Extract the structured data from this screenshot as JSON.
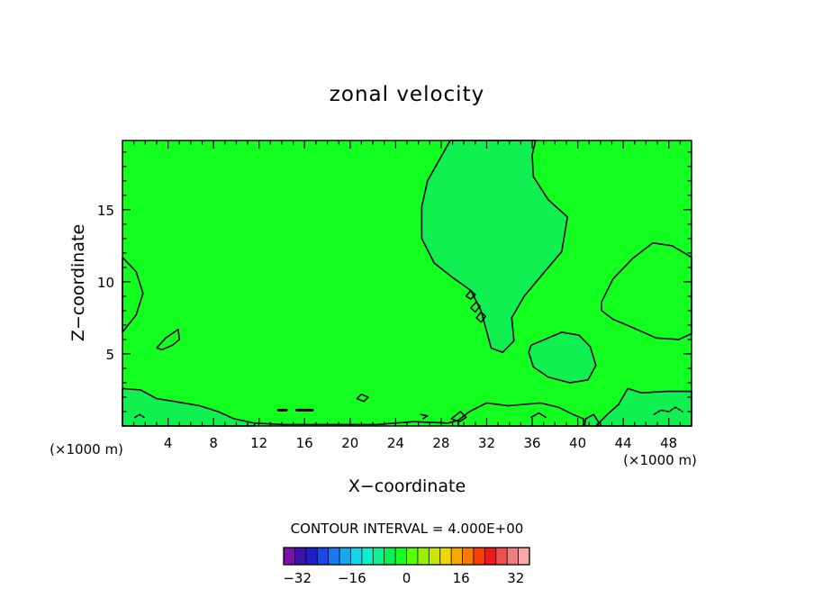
{
  "chart_data": {
    "type": "heatmap",
    "title": "zonal velocity",
    "xlabel": "X−coordinate",
    "ylabel": "Z−coordinate",
    "x_unit_label": "(×1000 m)",
    "x_unit_label_right": "(×1000 m)",
    "xlim": [
      0,
      50
    ],
    "ylim": [
      0,
      19.8
    ],
    "x_ticks": [
      4,
      8,
      12,
      16,
      20,
      24,
      28,
      32,
      36,
      40,
      44,
      48
    ],
    "x_tick_labels": [
      "4",
      "8",
      "12",
      "16",
      "20",
      "24",
      "28",
      "32",
      "36",
      "40",
      "44",
      "48"
    ],
    "y_ticks": [
      5,
      10,
      15
    ],
    "y_tick_labels": [
      "5",
      "10",
      "15"
    ],
    "contour_interval_text": "CONTOUR INTERVAL = 4.000E+00",
    "background_value": 0,
    "colorbar": {
      "min": -36,
      "max": 36,
      "step": 4,
      "tick_values": [
        -32,
        -16,
        0,
        16,
        32
      ],
      "tick_labels": [
        "−32",
        "−16",
        "0",
        "16",
        "32"
      ],
      "colors": [
        "#7a10a8",
        "#4012b0",
        "#2020c8",
        "#1a48e8",
        "#1a78f0",
        "#18a8f0",
        "#18d4e8",
        "#10f0c8",
        "#10f090",
        "#10f050",
        "#12ff20",
        "#58ff00",
        "#98f000",
        "#c8e800",
        "#f0d800",
        "#f8a800",
        "#f87800",
        "#f84000",
        "#f01818",
        "#f05050",
        "#f08080",
        "#f8a8a8"
      ]
    },
    "regions": [
      {
        "value": 0,
        "polygon": [
          [
            28.8,
            19.8
          ],
          [
            26.8,
            17
          ],
          [
            26.3,
            15.2
          ],
          [
            26.3,
            13
          ],
          [
            27.4,
            11.3
          ],
          [
            29,
            10.3
          ],
          [
            30.6,
            9.4
          ],
          [
            31.5,
            8
          ],
          [
            32.4,
            5.4
          ],
          [
            33.4,
            5.1
          ],
          [
            34.4,
            5.9
          ],
          [
            34.2,
            7.5
          ],
          [
            35.3,
            9
          ],
          [
            37.1,
            10.7
          ],
          [
            38.6,
            12.1
          ],
          [
            39.1,
            14.5
          ],
          [
            37.4,
            15.7
          ],
          [
            36.1,
            17.3
          ],
          [
            36,
            18.8
          ],
          [
            36.3,
            19.8
          ]
        ]
      },
      {
        "value": 0,
        "polygon": [
          [
            35.9,
            5.6
          ],
          [
            36.8,
            5.9
          ],
          [
            38.6,
            6.5
          ],
          [
            40.1,
            6.3
          ],
          [
            41.1,
            5.5
          ],
          [
            41.6,
            4.2
          ],
          [
            40.9,
            3.2
          ],
          [
            39.3,
            3
          ],
          [
            37.4,
            3.4
          ],
          [
            36.1,
            4.1
          ],
          [
            35.7,
            5.1
          ]
        ]
      },
      {
        "value": 4,
        "polygon": [
          [
            42.1,
            8.6
          ],
          [
            43.1,
            10.2
          ],
          [
            44.8,
            11.6
          ],
          [
            46.6,
            12.7
          ],
          [
            48.3,
            12.5
          ],
          [
            50,
            11.7
          ],
          [
            50,
            6.4
          ],
          [
            48.9,
            6
          ],
          [
            46.9,
            6.1
          ],
          [
            44.9,
            6.8
          ],
          [
            43.1,
            7.4
          ],
          [
            42.1,
            8
          ]
        ]
      },
      {
        "value": 4,
        "polygon": [
          [
            0,
            11.7
          ],
          [
            1.2,
            10.7
          ],
          [
            1.8,
            9.2
          ],
          [
            1.2,
            7.7
          ],
          [
            0,
            6.5
          ]
        ]
      },
      {
        "value": 4,
        "polygon": [
          [
            3,
            5.4
          ],
          [
            3.8,
            6.1
          ],
          [
            4.9,
            6.7
          ],
          [
            5,
            6
          ],
          [
            4.4,
            5.6
          ],
          [
            3.5,
            5.3
          ]
        ]
      },
      {
        "value": 0,
        "polygon": [
          [
            0,
            2.6
          ],
          [
            1.6,
            2.5
          ],
          [
            3,
            1.9
          ],
          [
            4.6,
            1.7
          ],
          [
            6.8,
            1.4
          ],
          [
            8.4,
            1
          ],
          [
            9.8,
            0.5
          ],
          [
            11.6,
            0.2
          ],
          [
            11.6,
            0
          ],
          [
            0,
            0
          ]
        ]
      },
      {
        "value": 0,
        "polygon": [
          [
            41.6,
            0
          ],
          [
            42.6,
            0.8
          ],
          [
            43.6,
            1.5
          ],
          [
            44.4,
            2.6
          ],
          [
            45.6,
            2.3
          ],
          [
            47.8,
            2.4
          ],
          [
            50,
            2.4
          ],
          [
            50,
            0
          ]
        ]
      },
      {
        "value": 4,
        "polygon": [
          [
            29.5,
            0.4
          ],
          [
            30.5,
            1
          ],
          [
            32,
            1.6
          ],
          [
            33.9,
            1.4
          ],
          [
            35.3,
            1.5
          ],
          [
            36.7,
            1.6
          ],
          [
            38.3,
            1.3
          ],
          [
            39.6,
            0.8
          ],
          [
            40.5,
            0.5
          ],
          [
            40.5,
            0
          ],
          [
            29.5,
            0
          ]
        ]
      },
      {
        "value": 0,
        "polygon": [
          [
            40.6,
            0
          ],
          [
            40.7,
            0.5
          ],
          [
            41.4,
            0.8
          ],
          [
            41.8,
            0.3
          ],
          [
            41.8,
            0
          ]
        ]
      }
    ],
    "extra_contours": [
      {
        "value": 0,
        "points": [
          [
            30.2,
            9
          ],
          [
            30.6,
            9.4
          ],
          [
            31,
            9.1
          ],
          [
            30.6,
            8.8
          ],
          [
            30.2,
            9
          ]
        ]
      },
      {
        "value": 0,
        "points": [
          [
            30.6,
            8.2
          ],
          [
            31.1,
            8.6
          ],
          [
            31.4,
            8.3
          ],
          [
            31,
            7.9
          ],
          [
            30.6,
            8.2
          ]
        ]
      },
      {
        "value": 0,
        "points": [
          [
            31.1,
            7.5
          ],
          [
            31.5,
            7.9
          ],
          [
            31.9,
            7.6
          ],
          [
            31.5,
            7.2
          ],
          [
            31.1,
            7.5
          ]
        ]
      },
      {
        "value": 0,
        "points": [
          [
            13.7,
            1.1
          ],
          [
            14.4,
            1.1
          ]
        ]
      },
      {
        "value": 0,
        "points": [
          [
            15.3,
            1.1
          ],
          [
            16.7,
            1.1
          ]
        ]
      },
      {
        "value": 4,
        "points": [
          [
            20.6,
            1.9
          ],
          [
            21,
            2.2
          ],
          [
            21.6,
            2
          ],
          [
            21.2,
            1.7
          ],
          [
            20.6,
            1.9
          ]
        ]
      },
      {
        "value": 4,
        "points": [
          [
            26.2,
            0.8
          ],
          [
            26.8,
            0.7
          ],
          [
            26.4,
            0.5
          ]
        ]
      },
      {
        "value": 4,
        "points": [
          [
            28.9,
            0.5
          ],
          [
            29.7,
            1
          ],
          [
            30.2,
            0.6
          ],
          [
            29.6,
            0.3
          ],
          [
            28.9,
            0.5
          ]
        ]
      },
      {
        "value": 4,
        "points": [
          [
            35.9,
            0.6
          ],
          [
            36.6,
            0.9
          ],
          [
            37.2,
            0.6
          ]
        ]
      },
      {
        "value": -4,
        "points": [
          [
            46.7,
            0.8
          ],
          [
            47.3,
            1.1
          ],
          [
            48,
            1
          ],
          [
            48.6,
            1.3
          ],
          [
            49.2,
            1
          ]
        ]
      },
      {
        "value": -4,
        "points": [
          [
            1.1,
            0.6
          ],
          [
            1.5,
            0.8
          ],
          [
            1.9,
            0.6
          ]
        ]
      },
      {
        "value": 0,
        "points": [
          [
            11.6,
            0.2
          ],
          [
            14.2,
            0.1
          ],
          [
            18.4,
            0.1
          ],
          [
            22.3,
            0.1
          ],
          [
            25.6,
            0.3
          ],
          [
            28.6,
            0.2
          ],
          [
            29.5,
            0.4
          ]
        ]
      }
    ]
  }
}
